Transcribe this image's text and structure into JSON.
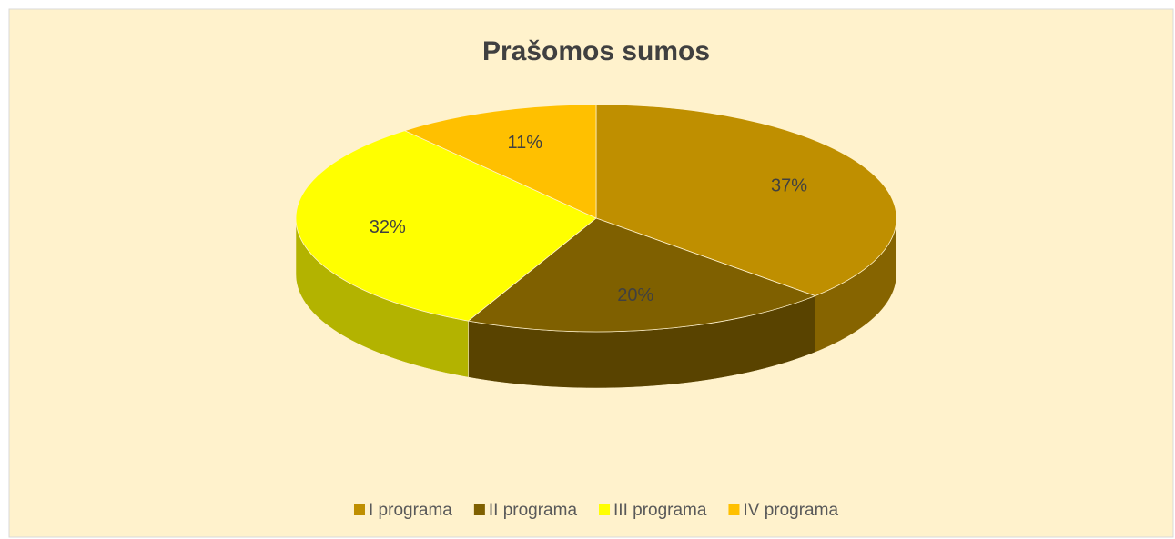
{
  "chart_data": {
    "type": "pie",
    "title": "Prašomos sumos",
    "categories": [
      "I programa",
      "II programa",
      "III programa",
      "IV programa"
    ],
    "values": [
      37,
      20,
      32,
      11
    ],
    "value_labels": [
      "37%",
      "20%",
      "32%",
      "11%"
    ],
    "colors": [
      "#bf8f00",
      "#7f6000",
      "#ffff00",
      "#ffc000"
    ],
    "legend": "bottom"
  }
}
